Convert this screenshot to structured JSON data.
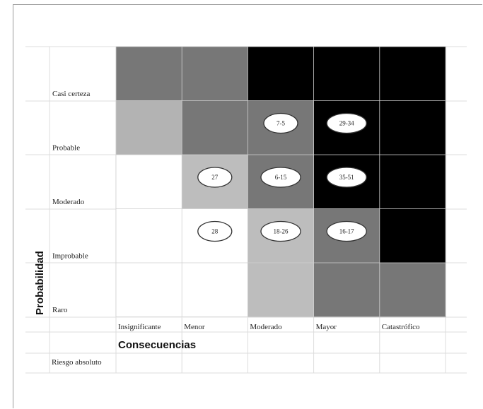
{
  "chart_data": {
    "type": "heatmap",
    "ylabel": "Probabilidad",
    "xlabel": "Consecuencias",
    "footer_label": "Riesgo absoluto",
    "rows": [
      "Casi certeza",
      "Probable",
      "Moderado",
      "Improbable",
      "Raro"
    ],
    "columns": [
      "Insignificante",
      "Menor",
      "Moderado",
      "Mayor",
      "Catastrófico"
    ],
    "levels": [
      [
        3,
        3,
        4,
        4,
        4
      ],
      [
        2,
        3,
        3,
        4,
        4
      ],
      [
        0,
        1,
        3,
        4,
        4
      ],
      [
        0,
        0,
        1,
        3,
        4
      ],
      [
        0,
        0,
        1,
        3,
        3
      ]
    ],
    "level_colors": [
      "#ffffff",
      "#bdbdbd",
      "#b3b3b3",
      "#777777",
      "#000000"
    ],
    "markers": [
      {
        "row": 1,
        "col": 2,
        "label": "7-5"
      },
      {
        "row": 1,
        "col": 3,
        "label": "29-34"
      },
      {
        "row": 2,
        "col": 1,
        "label": "27"
      },
      {
        "row": 2,
        "col": 2,
        "label": "6-15"
      },
      {
        "row": 2,
        "col": 3,
        "label": "35-51"
      },
      {
        "row": 3,
        "col": 1,
        "label": "28"
      },
      {
        "row": 3,
        "col": 2,
        "label": "18-26"
      },
      {
        "row": 3,
        "col": 3,
        "label": "16-17"
      }
    ]
  }
}
